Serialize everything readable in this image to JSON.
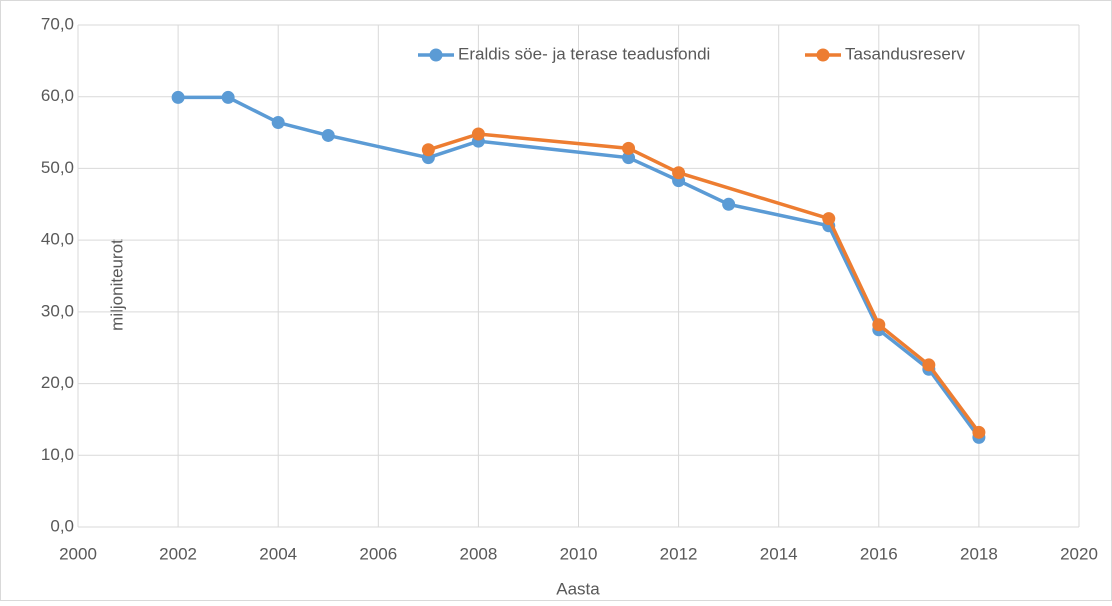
{
  "chart_data": {
    "type": "line",
    "x_label": "Aasta",
    "y_label": "miljoniteurot",
    "series": [
      {
        "name": "Eraldis söe- ja terase teadusfondi",
        "color": "#5b9bd5",
        "x": [
          2002,
          2003,
          2004,
          2005,
          2007,
          2008,
          2011,
          2012,
          2013,
          2015,
          2016,
          2017,
          2018
        ],
        "values": [
          59.9,
          59.9,
          56.4,
          54.6,
          51.5,
          53.8,
          51.5,
          48.3,
          45.0,
          42.0,
          27.5,
          22.0,
          12.5
        ]
      },
      {
        "name": "Tasandusreserv",
        "color": "#ed7d31",
        "x": [
          2007,
          2008,
          2011,
          2012,
          2015,
          2016,
          2017,
          2018
        ],
        "values": [
          52.6,
          54.8,
          52.8,
          49.4,
          43.0,
          28.2,
          22.6,
          13.2
        ]
      }
    ],
    "xlim": [
      2000,
      2020
    ],
    "xticks": [
      2000,
      2002,
      2004,
      2006,
      2008,
      2010,
      2012,
      2014,
      2016,
      2018,
      2020
    ],
    "ylim": [
      0,
      70
    ],
    "yticks": [
      {
        "value": 0,
        "label": "0,0"
      },
      {
        "value": 10,
        "label": "10,0"
      },
      {
        "value": 20,
        "label": "20,0"
      },
      {
        "value": 30,
        "label": "30,0"
      },
      {
        "value": 40,
        "label": "40,0"
      },
      {
        "value": 50,
        "label": "50,0"
      },
      {
        "value": 60,
        "label": "60,0"
      },
      {
        "value": 70,
        "label": "70,0"
      }
    ],
    "grid": true,
    "legend": "top"
  }
}
